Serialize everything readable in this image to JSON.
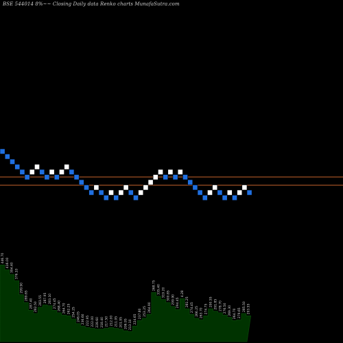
{
  "chart_data": {
    "type": "renko",
    "title": "BSE 544014  8%~~ Closing Daily data  Renko  charts MunafaSutra.com",
    "colors": {
      "background": "#000000",
      "up_brick": "#ffffff",
      "down_brick": "#1f6fe0",
      "brick_border": "#000000",
      "reference_line": "#c8642b",
      "volume_fill": "#003300",
      "volume_border": "#0a4a0a"
    },
    "reference_lines": [
      258,
      270
    ],
    "bricks": [
      {
        "dir": "down",
        "level": 0
      },
      {
        "dir": "down",
        "level": 1
      },
      {
        "dir": "down",
        "level": 2
      },
      {
        "dir": "down",
        "level": 3
      },
      {
        "dir": "down",
        "level": 4
      },
      {
        "dir": "down",
        "level": 5
      },
      {
        "dir": "up",
        "level": 4
      },
      {
        "dir": "up",
        "level": 3
      },
      {
        "dir": "down",
        "level": 4
      },
      {
        "dir": "down",
        "level": 5
      },
      {
        "dir": "up",
        "level": 4
      },
      {
        "dir": "down",
        "level": 5
      },
      {
        "dir": "up",
        "level": 4
      },
      {
        "dir": "up",
        "level": 3
      },
      {
        "dir": "down",
        "level": 4
      },
      {
        "dir": "down",
        "level": 5
      },
      {
        "dir": "down",
        "level": 6
      },
      {
        "dir": "down",
        "level": 7
      },
      {
        "dir": "down",
        "level": 8
      },
      {
        "dir": "up",
        "level": 7
      },
      {
        "dir": "down",
        "level": 8
      },
      {
        "dir": "down",
        "level": 9
      },
      {
        "dir": "up",
        "level": 8
      },
      {
        "dir": "down",
        "level": 9
      },
      {
        "dir": "up",
        "level": 8
      },
      {
        "dir": "up",
        "level": 7
      },
      {
        "dir": "down",
        "level": 8
      },
      {
        "dir": "down",
        "level": 9
      },
      {
        "dir": "up",
        "level": 8
      },
      {
        "dir": "up",
        "level": 7
      },
      {
        "dir": "up",
        "level": 6
      },
      {
        "dir": "up",
        "level": 5
      },
      {
        "dir": "up",
        "level": 4
      },
      {
        "dir": "down",
        "level": 5
      },
      {
        "dir": "up",
        "level": 4
      },
      {
        "dir": "down",
        "level": 5
      },
      {
        "dir": "up",
        "level": 4
      },
      {
        "dir": "down",
        "level": 5
      },
      {
        "dir": "down",
        "level": 6
      },
      {
        "dir": "down",
        "level": 7
      },
      {
        "dir": "down",
        "level": 8
      },
      {
        "dir": "down",
        "level": 9
      },
      {
        "dir": "up",
        "level": 8
      },
      {
        "dir": "up",
        "level": 7
      },
      {
        "dir": "down",
        "level": 8
      },
      {
        "dir": "down",
        "level": 9
      },
      {
        "dir": "up",
        "level": 8
      },
      {
        "dir": "down",
        "level": 9
      },
      {
        "dir": "up",
        "level": 8
      },
      {
        "dir": "up",
        "level": 7
      },
      {
        "dir": "down",
        "level": 8
      }
    ],
    "volume": [
      {
        "v": 98,
        "label": "446.70"
      },
      {
        "v": 92,
        "label": "416.00"
      },
      {
        "v": 86,
        "label": "394.40"
      },
      {
        "v": 78,
        "label": "376.10"
      },
      {
        "v": 60,
        "label": "299.90"
      },
      {
        "v": 50,
        "label": "289.65"
      },
      {
        "v": 40,
        "label": "287.40"
      },
      {
        "v": 36,
        "label": "282.50"
      },
      {
        "v": 44,
        "label": "283.55"
      },
      {
        "v": 47,
        "label": "287.95"
      },
      {
        "v": 46,
        "label": "283.10"
      },
      {
        "v": 40,
        "label": "274.45"
      },
      {
        "v": 37,
        "label": "268.40"
      },
      {
        "v": 34,
        "label": "264.70"
      },
      {
        "v": 33,
        "label": "262.25"
      },
      {
        "v": 29,
        "label": "254.25"
      },
      {
        "v": 23,
        "label": "246.05"
      },
      {
        "v": 20,
        "label": "236.60"
      },
      {
        "v": 18,
        "label": "222.95"
      },
      {
        "v": 17,
        "label": "222.00"
      },
      {
        "v": 16,
        "label": "228.60"
      },
      {
        "v": 16,
        "label": "218.40"
      },
      {
        "v": 17,
        "label": "217.50"
      },
      {
        "v": 18,
        "label": "212.00"
      },
      {
        "v": 17,
        "label": "211.95"
      },
      {
        "v": 16,
        "label": "201.95"
      },
      {
        "v": 14,
        "label": "206.95"
      },
      {
        "v": 13,
        "label": "213.10"
      },
      {
        "v": 20,
        "label": "224.65"
      },
      {
        "v": 27,
        "label": "237.80"
      },
      {
        "v": 30,
        "label": "253.25"
      },
      {
        "v": 35,
        "label": "264.90"
      },
      {
        "v": 63,
        "label": "268.75"
      },
      {
        "v": 58,
        "label": "335.40"
      },
      {
        "v": 54,
        "label": "319.20"
      },
      {
        "v": 50,
        "label": "300.85"
      },
      {
        "v": 45,
        "label": "299.90"
      },
      {
        "v": 41,
        "label": "294.45"
      },
      {
        "v": 55,
        "label": "4.28"
      },
      {
        "v": 42,
        "label": "281.25"
      },
      {
        "v": 35,
        "label": "274.45"
      },
      {
        "v": 30,
        "label": "266.25"
      },
      {
        "v": 28,
        "label": "263.70"
      },
      {
        "v": 33,
        "label": "274.75"
      },
      {
        "v": 42,
        "label": "290.55"
      },
      {
        "v": 39,
        "label": "291.85"
      },
      {
        "v": 37,
        "label": "278.70"
      },
      {
        "v": 34,
        "label": "276.50"
      },
      {
        "v": 31,
        "label": "269.30"
      },
      {
        "v": 27,
        "label": "264.70"
      },
      {
        "v": 28,
        "label": "279.65"
      },
      {
        "v": 36,
        "label": "285.50"
      },
      {
        "v": 33,
        "label": "293.55"
      }
    ]
  }
}
